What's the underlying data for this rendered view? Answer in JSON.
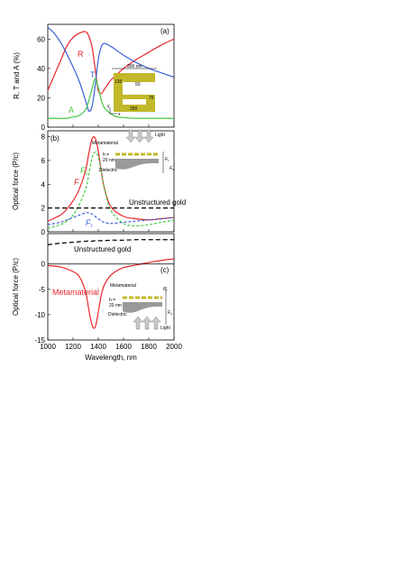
{
  "chart_data": [
    {
      "type": "line",
      "panel_label": "(a)",
      "ylabel": "R, T and A (%)",
      "xlim": [
        1000,
        2000
      ],
      "ylim": [
        0,
        70
      ],
      "yticks": [
        0,
        20,
        40,
        60
      ],
      "x": [
        1000,
        1050,
        1100,
        1150,
        1200,
        1250,
        1300,
        1325,
        1350,
        1375,
        1400,
        1425,
        1450,
        1500,
        1550,
        1600,
        1700,
        1800,
        1900,
        2000
      ],
      "series": [
        {
          "name": "R",
          "color": "#e8262c",
          "values": [
            25,
            35,
            45,
            55,
            61,
            64,
            65,
            62,
            55,
            40,
            25,
            23,
            26,
            32,
            36,
            40,
            46,
            51,
            56,
            60
          ]
        },
        {
          "name": "T",
          "color": "#3b5fd6",
          "values": [
            68,
            64,
            58,
            50,
            41,
            31,
            18,
            11,
            14,
            28,
            46,
            55,
            57,
            55,
            52,
            49,
            44,
            40,
            37,
            34
          ]
        },
        {
          "name": "A",
          "color": "#42c842",
          "values": [
            6,
            6,
            6,
            6,
            7,
            8,
            12,
            18,
            26,
            33,
            27,
            18,
            13,
            9,
            7,
            6.5,
            6,
            6,
            6,
            6
          ]
        }
      ],
      "inset": {
        "width_label": "300 nm",
        "bar_label": "50",
        "gap_label": "75",
        "bottom_label": "250",
        "side_label": "135",
        "x_axis": "x",
        "y_axis": "y"
      }
    },
    {
      "type": "line",
      "panel_label": "(b)",
      "ylabel": "Optical force (P/c)",
      "xlim": [
        1000,
        2000
      ],
      "ylim": [
        0,
        8.5
      ],
      "yticks": [
        0,
        2,
        4,
        6,
        8
      ],
      "x": [
        1000,
        1100,
        1150,
        1200,
        1250,
        1300,
        1325,
        1350,
        1375,
        1400,
        1425,
        1450,
        1500,
        1600,
        1700,
        1800,
        1900,
        2000
      ],
      "series": [
        {
          "name": "F",
          "color": "#e8262c",
          "dash": "",
          "values": [
            0.9,
            1.4,
            1.9,
            2.6,
            3.6,
            5.2,
            6.6,
            7.8,
            7.9,
            6.8,
            5.0,
            3.6,
            2.1,
            1.3,
            1.1,
            1.0,
            1.1,
            1.2
          ]
        },
        {
          "name": "Fs",
          "color": "#42c842",
          "dash": "3,2",
          "values": [
            0.3,
            0.6,
            0.9,
            1.4,
            2.3,
            3.6,
            4.8,
            6.2,
            6.7,
            6.3,
            5.0,
            3.6,
            1.8,
            0.7,
            0.5,
            0.6,
            0.8,
            1.0
          ]
        },
        {
          "name": "Fr",
          "color": "#3b5fd6",
          "dash": "3,2",
          "values": [
            0.6,
            0.8,
            1.0,
            1.2,
            1.4,
            1.6,
            1.6,
            1.5,
            1.3,
            1.1,
            0.9,
            0.8,
            0.7,
            0.8,
            0.9,
            1.0,
            1.1,
            1.2
          ]
        },
        {
          "name": "Unstructured gold",
          "color": "#000000",
          "dash": "5,3",
          "values": [
            2.0,
            2.0,
            2.0,
            2.0,
            2.0,
            2.0,
            2.0,
            2.0,
            2.0,
            2.0,
            2.0,
            2.0,
            2.0,
            2.0,
            2.0,
            2.0,
            2.0,
            2.0
          ]
        }
      ],
      "series_labels": {
        "F": "F",
        "Fs": "F",
        "Fs_sub": "s",
        "Fr": "F",
        "Fr_sub": "r"
      },
      "annotations": {
        "unstructured": "Unstructured gold",
        "metamaterial": "Metamaterial",
        "light": "Light",
        "h": "h =",
        "h_val": "20 nm",
        "dielectric": "Dielectric",
        "F_r": "F",
        "F_r_sub": "r",
        "F_s": "F",
        "F_s_sub": "s"
      }
    },
    {
      "type": "line",
      "panel_label": "(c)",
      "ylabel": "Optical force (P/c)",
      "xlabel": "Wavelength, nm",
      "xlim": [
        1000,
        2000
      ],
      "ylim": [
        -15,
        6
      ],
      "yticks": [
        -15,
        -10,
        -5,
        0
      ],
      "xticks": [
        1000,
        1200,
        1400,
        1600,
        1800,
        2000
      ],
      "x": [
        1000,
        1100,
        1200,
        1250,
        1300,
        1325,
        1350,
        1375,
        1400,
        1425,
        1450,
        1500,
        1550,
        1600,
        1700,
        1800,
        1900,
        2000
      ],
      "series": [
        {
          "name": "Metamaterial",
          "color": "#e8262c",
          "dash": "",
          "values": [
            -0.3,
            -0.6,
            -1.5,
            -2.5,
            -5.5,
            -9,
            -12,
            -12.5,
            -9.5,
            -6,
            -4,
            -2.2,
            -1.3,
            -0.7,
            -0.2,
            0.3,
            0.7,
            1.0
          ]
        },
        {
          "name": "Unstructured gold",
          "color": "#000000",
          "dash": "5,3",
          "values": [
            3.8,
            4.1,
            4.3,
            4.4,
            4.5,
            4.5,
            4.5,
            4.6,
            4.6,
            4.6,
            4.6,
            4.7,
            4.7,
            4.7,
            4.8,
            4.8,
            4.8,
            4.8
          ]
        }
      ],
      "annotations": {
        "unstructured": "Unstructured gold",
        "metamaterial_series": "Metamaterial",
        "metamaterial": "Metamaterial",
        "light": "Light",
        "h": "h =",
        "h_val": "20 nm",
        "dielectric": "Dielectric",
        "F_r": "F",
        "F_r_sub": "r",
        "F_s": "F",
        "F_s_sub": "s"
      }
    }
  ]
}
